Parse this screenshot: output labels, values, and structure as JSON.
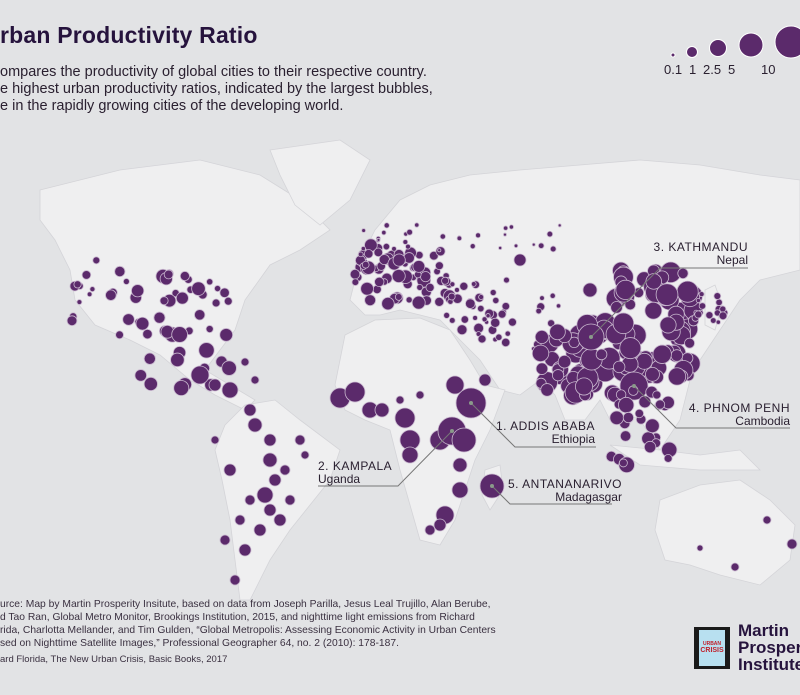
{
  "header": {
    "title": "rban Productivity Ratio",
    "description": [
      "ompares the productivity of global cities to their respective country.",
      "e highest urban productivity ratios, indicated by the largest bubbles,",
      "e in the rapidly growing cities of the developing world."
    ]
  },
  "legend": {
    "items": [
      {
        "label": "0.1",
        "value": 0.1
      },
      {
        "label": "1",
        "value": 1
      },
      {
        "label": "2.5",
        "value": 2.5
      },
      {
        "label": "5",
        "value": 5
      },
      {
        "label": "10",
        "value": 10
      }
    ]
  },
  "annotations": [
    {
      "rank_name": "1. ADDIS ABABA",
      "country": "Ethiopia"
    },
    {
      "rank_name": "2. KAMPALA",
      "country": "Uganda"
    },
    {
      "rank_name": "3. KATHMANDU",
      "country": "Nepal"
    },
    {
      "rank_name": "4. PHNOM PENH",
      "country": "Cambodia"
    },
    {
      "rank_name": "5. ANTANANARIVO",
      "country": "Madagasgar"
    }
  ],
  "source": {
    "lines": [
      "urce: Map by Martin Prosperity Insitute, based on data from Joseph Parilla, Jesus Leal Trujillo, Alan Berube,",
      "d Tao Ran, Global Metro Monitor, Brookings Institution, 2015, and nighttime light emissions from Richard",
      "rida, Charlotta Mellander, and Tim Gulden, “Global Metropolis: Assessing Economic Activity in Urban Centers",
      "sed on Nighttime Satellite Images,” Professional Geographer 64, no. 2 (2010): 178-187."
    ],
    "citation": "ard Florida, The New Urban Crisis, Basic Books, 2017"
  },
  "logo": {
    "lines": [
      "Martin",
      "Prosperi",
      "Institute"
    ],
    "book_title": "CRISIS",
    "book_kicker": "URBAN"
  },
  "colors": {
    "background": "#e2e3e5",
    "land": "#efeff0",
    "bubble": "#5b2a6b",
    "text": "#26133d"
  }
}
